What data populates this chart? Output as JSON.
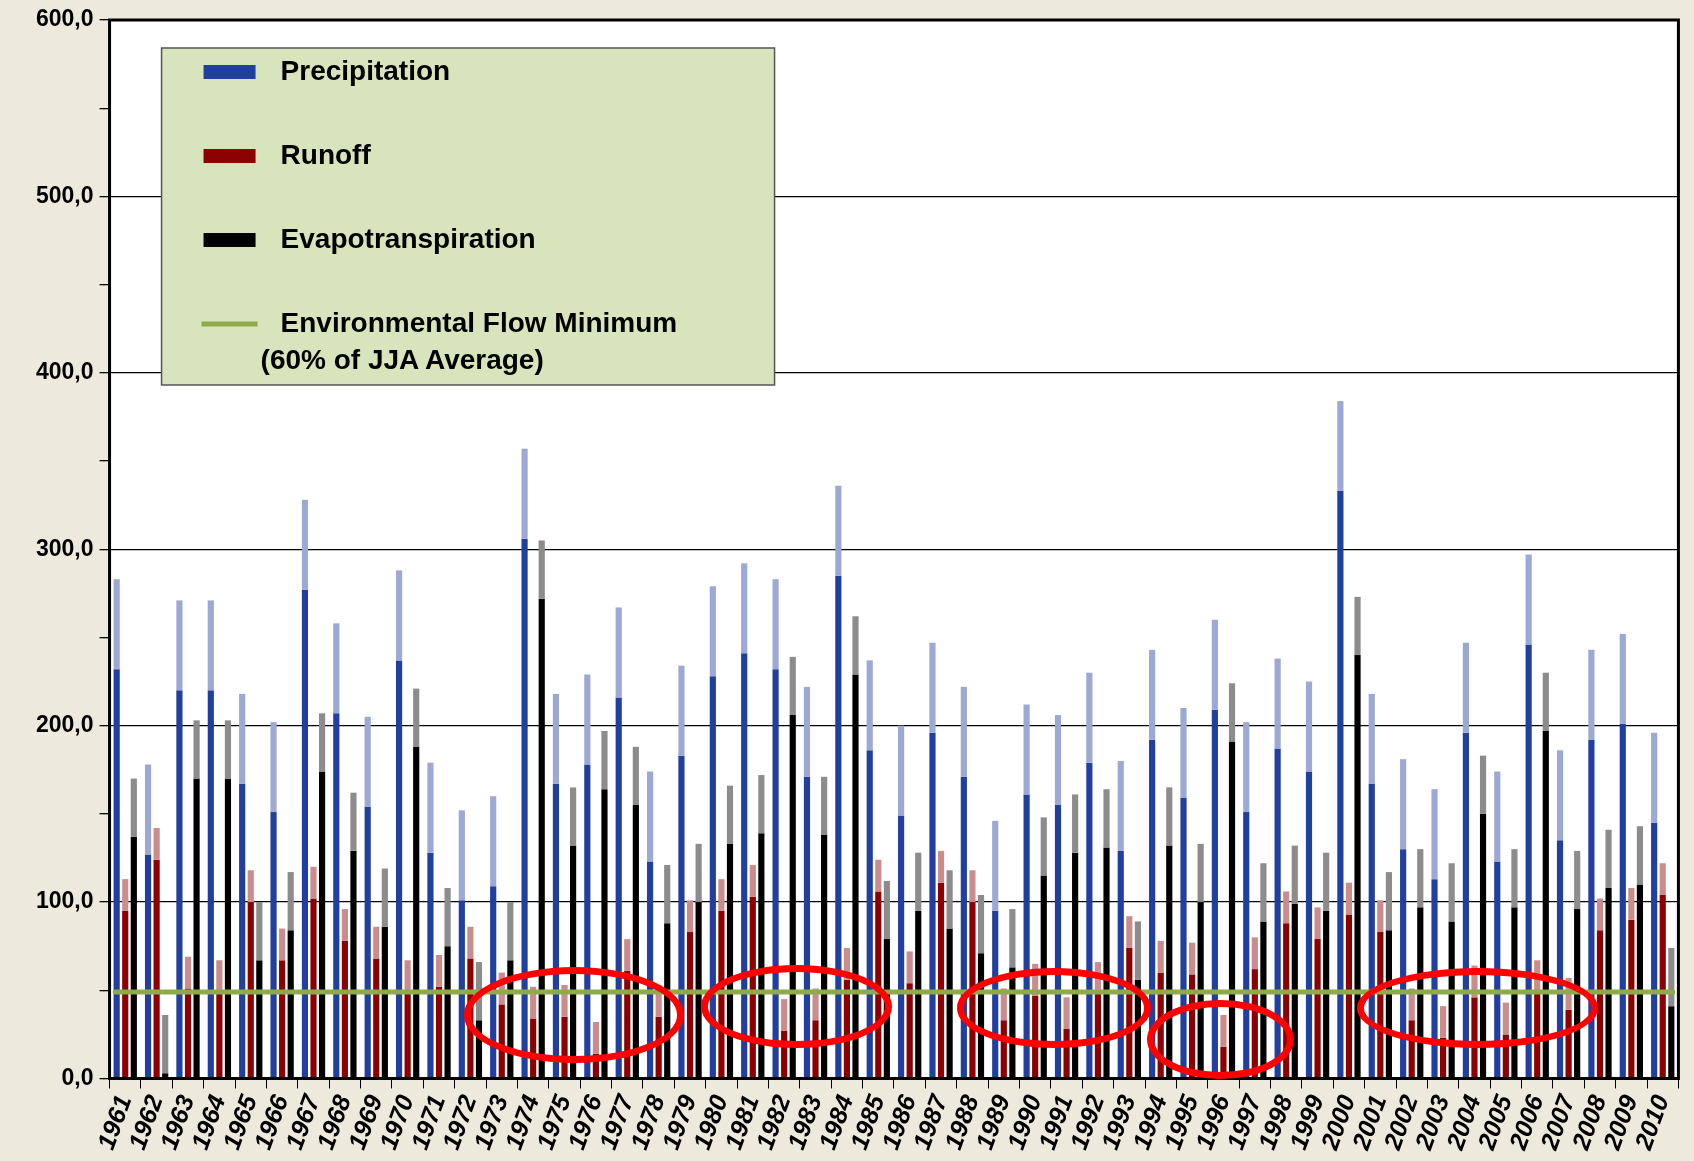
{
  "chart_data": {
    "type": "bar",
    "categories": [
      "1961",
      "1962",
      "1963",
      "1964",
      "1965",
      "1966",
      "1967",
      "1968",
      "1969",
      "1970",
      "1971",
      "1972",
      "1973",
      "1974",
      "1975",
      "1976",
      "1977",
      "1978",
      "1979",
      "1980",
      "1981",
      "1982",
      "1983",
      "1984",
      "1985",
      "1986",
      "1987",
      "1988",
      "1989",
      "1990",
      "1991",
      "1992",
      "1993",
      "1994",
      "1995",
      "1996",
      "1997",
      "1998",
      "1999",
      "2000",
      "2001",
      "2002",
      "2003",
      "2004",
      "2005",
      "2006",
      "2007",
      "2008",
      "2009",
      "2010"
    ],
    "series": [
      {
        "name": "Precipitation",
        "color": "#213f9e",
        "values": [
          232,
          127,
          220,
          220,
          167,
          151,
          277,
          207,
          154,
          237,
          128,
          101,
          109,
          306,
          167,
          178,
          216,
          123,
          183,
          228,
          241,
          232,
          171,
          285,
          186,
          149,
          196,
          171,
          95,
          161,
          155,
          179,
          129,
          192,
          159,
          209,
          151,
          187,
          174,
          333,
          167,
          130,
          113,
          196,
          123,
          246,
          135,
          192,
          201,
          145
        ],
        "errors": [
          [
            232,
            283
          ],
          [
            127,
            178
          ],
          [
            220,
            271
          ],
          [
            220,
            271
          ],
          [
            167,
            218
          ],
          [
            151,
            202
          ],
          [
            277,
            328
          ],
          [
            207,
            258
          ],
          [
            154,
            205
          ],
          [
            237,
            288
          ],
          [
            128,
            179
          ],
          [
            101,
            152
          ],
          [
            109,
            160
          ],
          [
            306,
            357
          ],
          [
            167,
            218
          ],
          [
            178,
            229
          ],
          [
            216,
            267
          ],
          [
            123,
            174
          ],
          [
            183,
            234
          ],
          [
            228,
            279
          ],
          [
            241,
            292
          ],
          [
            232,
            283
          ],
          [
            171,
            222
          ],
          [
            285,
            336
          ],
          [
            186,
            237
          ],
          [
            149,
            200
          ],
          [
            196,
            247
          ],
          [
            171,
            222
          ],
          [
            95,
            146
          ],
          [
            161,
            212
          ],
          [
            155,
            206
          ],
          [
            179,
            230
          ],
          [
            129,
            180
          ],
          [
            192,
            243
          ],
          [
            159,
            210
          ],
          [
            209,
            260
          ],
          [
            151,
            202
          ],
          [
            187,
            238
          ],
          [
            174,
            225
          ],
          [
            333,
            384
          ],
          [
            167,
            218
          ],
          [
            130,
            181
          ],
          [
            113,
            164
          ],
          [
            196,
            247
          ],
          [
            123,
            174
          ],
          [
            246,
            297
          ],
          [
            135,
            186
          ],
          [
            192,
            243
          ],
          [
            201,
            252
          ],
          [
            145,
            196
          ]
        ]
      },
      {
        "name": "Runoff",
        "color": "#8b0000",
        "values": [
          95,
          124,
          51,
          49,
          100,
          67,
          102,
          78,
          68,
          49,
          52,
          68,
          42,
          34,
          35,
          14,
          61,
          35,
          83,
          95,
          103,
          27,
          33,
          56,
          106,
          54,
          111,
          100,
          33,
          47,
          28,
          48,
          74,
          60,
          59,
          18,
          62,
          88,
          79,
          93,
          83,
          33,
          23,
          46,
          25,
          49,
          39,
          84,
          90,
          104
        ],
        "errors": [
          [
            95,
            113
          ],
          [
            124,
            142
          ],
          [
            51,
            69
          ],
          [
            49,
            67
          ],
          [
            100,
            118
          ],
          [
            67,
            85
          ],
          [
            102,
            120
          ],
          [
            78,
            96
          ],
          [
            68,
            86
          ],
          [
            49,
            67
          ],
          [
            52,
            70
          ],
          [
            68,
            86
          ],
          [
            42,
            60
          ],
          [
            34,
            52
          ],
          [
            35,
            53
          ],
          [
            14,
            32
          ],
          [
            61,
            79
          ],
          [
            35,
            53
          ],
          [
            83,
            101
          ],
          [
            95,
            113
          ],
          [
            103,
            121
          ],
          [
            27,
            45
          ],
          [
            33,
            51
          ],
          [
            56,
            74
          ],
          [
            106,
            124
          ],
          [
            54,
            72
          ],
          [
            111,
            129
          ],
          [
            100,
            118
          ],
          [
            33,
            51
          ],
          [
            47,
            65
          ],
          [
            28,
            46
          ],
          [
            48,
            66
          ],
          [
            74,
            92
          ],
          [
            60,
            78
          ],
          [
            59,
            77
          ],
          [
            18,
            36
          ],
          [
            62,
            80
          ],
          [
            88,
            106
          ],
          [
            79,
            97
          ],
          [
            93,
            111
          ],
          [
            83,
            101
          ],
          [
            33,
            51
          ],
          [
            23,
            41
          ],
          [
            46,
            64
          ],
          [
            25,
            43
          ],
          [
            49,
            67
          ],
          [
            39,
            57
          ],
          [
            84,
            102
          ],
          [
            90,
            108
          ],
          [
            104,
            122
          ]
        ]
      },
      {
        "name": "Evapotranspiration",
        "color": "#000000",
        "values": [
          137,
          3,
          170,
          170,
          67,
          84,
          174,
          129,
          86,
          188,
          75,
          33,
          67,
          272,
          132,
          164,
          155,
          88,
          100,
          133,
          139,
          206,
          138,
          229,
          79,
          95,
          85,
          71,
          63,
          115,
          128,
          131,
          56,
          132,
          100,
          191,
          89,
          99,
          95,
          240,
          84,
          97,
          89,
          150,
          97,
          197,
          96,
          108,
          110,
          41
        ],
        "errors": [
          [
            137,
            170
          ],
          [
            3,
            36
          ],
          [
            170,
            203
          ],
          [
            170,
            203
          ],
          [
            67,
            100
          ],
          [
            84,
            117
          ],
          [
            174,
            207
          ],
          [
            129,
            162
          ],
          [
            86,
            119
          ],
          [
            188,
            221
          ],
          [
            75,
            108
          ],
          [
            33,
            66
          ],
          [
            67,
            100
          ],
          [
            272,
            305
          ],
          [
            132,
            165
          ],
          [
            164,
            197
          ],
          [
            155,
            188
          ],
          [
            88,
            121
          ],
          [
            100,
            133
          ],
          [
            133,
            166
          ],
          [
            139,
            172
          ],
          [
            206,
            239
          ],
          [
            138,
            171
          ],
          [
            229,
            262
          ],
          [
            79,
            112
          ],
          [
            95,
            128
          ],
          [
            85,
            118
          ],
          [
            71,
            104
          ],
          [
            63,
            96
          ],
          [
            115,
            148
          ],
          [
            128,
            161
          ],
          [
            131,
            164
          ],
          [
            56,
            89
          ],
          [
            132,
            165
          ],
          [
            100,
            133
          ],
          [
            191,
            224
          ],
          [
            89,
            122
          ],
          [
            99,
            132
          ],
          [
            95,
            128
          ],
          [
            240,
            273
          ],
          [
            84,
            117
          ],
          [
            97,
            130
          ],
          [
            89,
            122
          ],
          [
            150,
            183
          ],
          [
            97,
            130
          ],
          [
            197,
            230
          ],
          [
            96,
            129
          ],
          [
            108,
            141
          ],
          [
            110,
            143
          ],
          [
            41,
            74
          ]
        ]
      }
    ],
    "ylim": [
      0,
      600
    ],
    "yticks": [
      {
        "value": 0,
        "label": "0,0"
      },
      {
        "value": 50,
        "label": null
      },
      {
        "value": 100,
        "label": "100,0"
      },
      {
        "value": 150,
        "label": null
      },
      {
        "value": 200,
        "label": "200,0"
      },
      {
        "value": 250,
        "label": null
      },
      {
        "value": 300,
        "label": "300,0"
      },
      {
        "value": 350,
        "label": null
      },
      {
        "value": 400,
        "label": "400,0"
      },
      {
        "value": 450,
        "label": null
      },
      {
        "value": 500,
        "label": "500,0"
      },
      {
        "value": 550,
        "label": null
      },
      {
        "value": 600,
        "label": "600,0"
      }
    ],
    "ref_lines": [
      {
        "axis": "y",
        "value": 49,
        "label": "Environmental Flow Minimum\n(60% of JJA Average)",
        "color": "#8faa4a"
      }
    ],
    "grid": "y",
    "legend": "top left"
  }
}
